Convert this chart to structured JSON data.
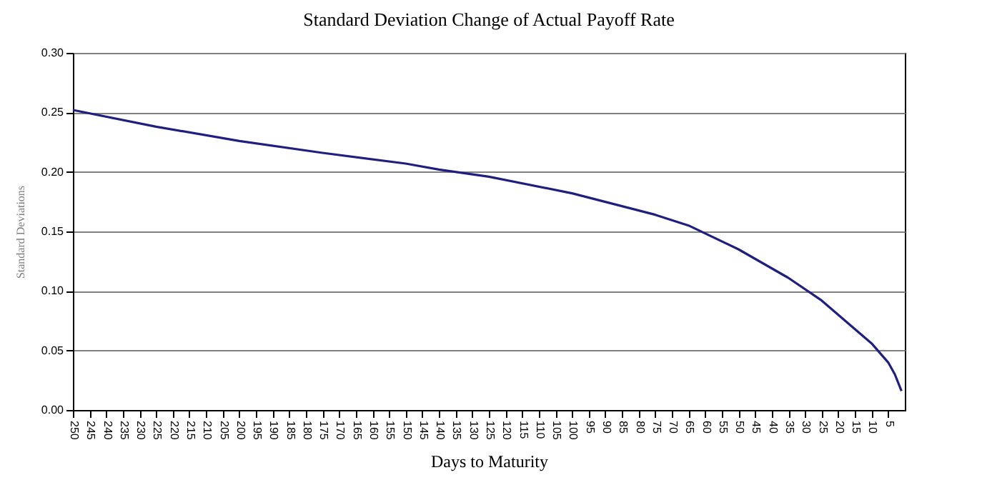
{
  "chart_data": {
    "type": "line",
    "title": "Standard Deviation Change of Actual Payoff Rate",
    "xlabel": "Days to Maturity",
    "ylabel": "Standard Deviations",
    "series": [
      {
        "color": "#1f1f80",
        "x": [
          250,
          225,
          200,
          175,
          150,
          140,
          125,
          100,
          75,
          65,
          50,
          35,
          25,
          15,
          10,
          5,
          3,
          1
        ],
        "values": [
          0.252,
          0.238,
          0.226,
          0.216,
          0.207,
          0.202,
          0.196,
          0.182,
          0.164,
          0.155,
          0.135,
          0.111,
          0.092,
          0.068,
          0.056,
          0.04,
          0.03,
          0.016
        ]
      }
    ],
    "xlim": [
      250,
      0
    ],
    "xticks": [
      250,
      245,
      240,
      235,
      230,
      225,
      220,
      215,
      210,
      205,
      200,
      195,
      190,
      185,
      180,
      175,
      170,
      165,
      160,
      155,
      150,
      145,
      140,
      135,
      130,
      125,
      120,
      115,
      110,
      105,
      100,
      95,
      90,
      85,
      80,
      75,
      70,
      65,
      60,
      55,
      50,
      45,
      40,
      35,
      30,
      25,
      20,
      15,
      10,
      5
    ],
    "ylim": [
      0,
      0.3
    ],
    "yticks": [
      {
        "value": 0,
        "label": "0.00"
      },
      {
        "value": 0.05,
        "label": "0.05"
      },
      {
        "value": 0.1,
        "label": "0.10"
      },
      {
        "value": 0.15,
        "label": "0.15"
      },
      {
        "value": 0.2,
        "label": "0.20"
      },
      {
        "value": 0.25,
        "label": "0.25"
      },
      {
        "value": 0.3,
        "label": "0.30"
      }
    ],
    "grid": "y",
    "line_style": "solid",
    "marker": "none"
  }
}
